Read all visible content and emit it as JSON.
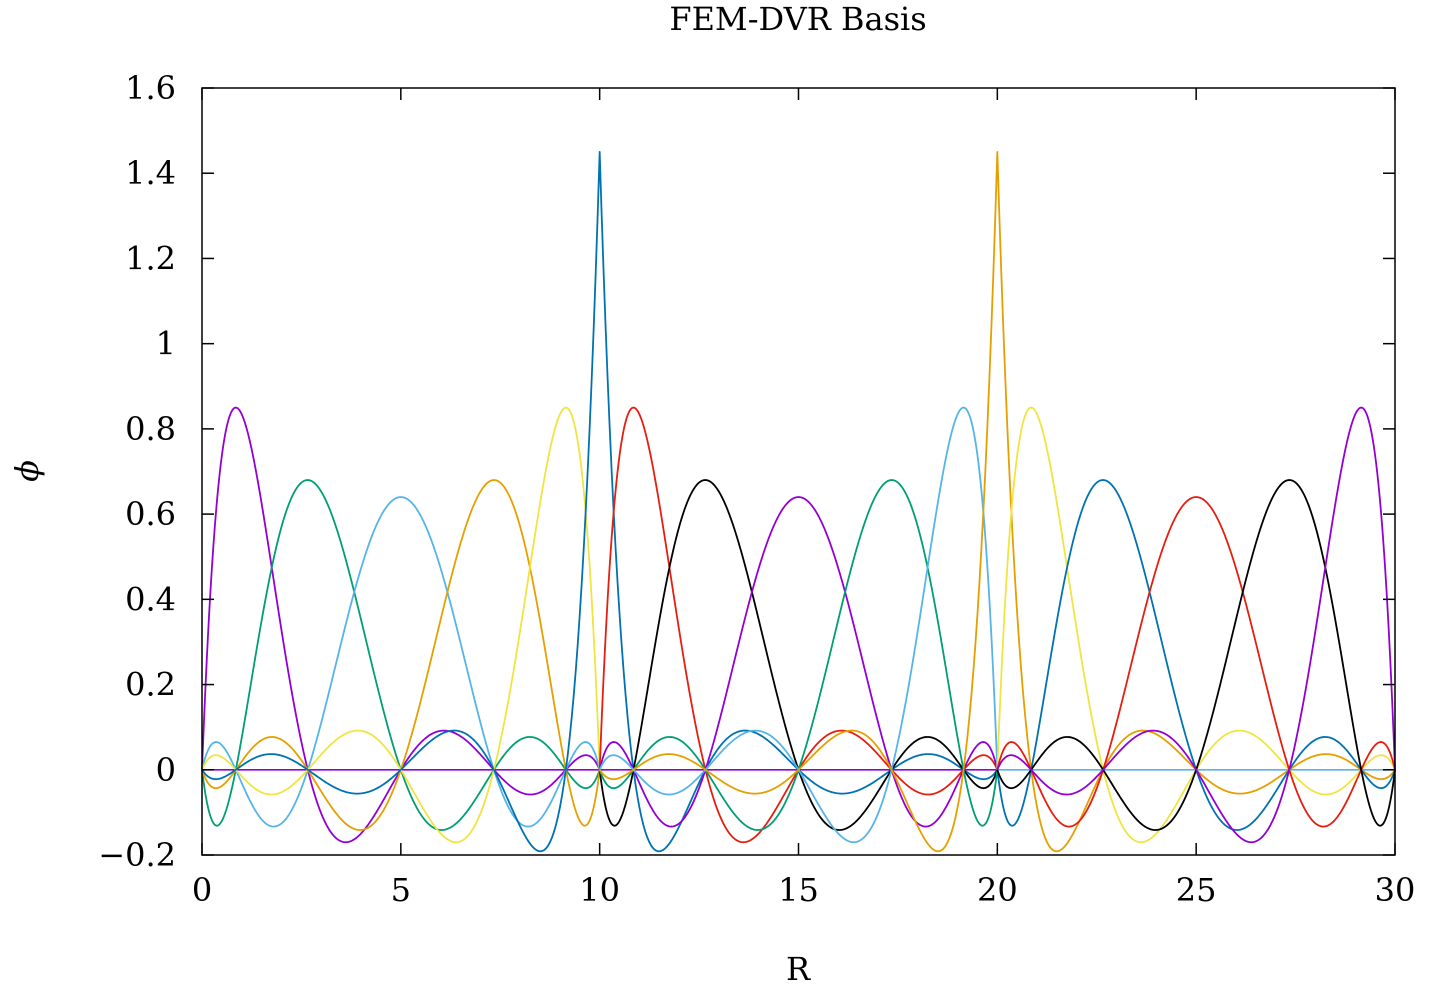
{
  "chart_data": {
    "type": "line",
    "title": "FEM-DVR Basis",
    "xlabel": "R",
    "ylabel": "ϕ",
    "xlim": [
      0,
      30
    ],
    "ylim": [
      -0.2,
      1.6
    ],
    "x_ticks": [
      {
        "value": 0,
        "label": "0"
      },
      {
        "value": 5,
        "label": "5"
      },
      {
        "value": 10,
        "label": "10"
      },
      {
        "value": 15,
        "label": "15"
      },
      {
        "value": 20,
        "label": "20"
      },
      {
        "value": 25,
        "label": "25"
      },
      {
        "value": 30,
        "label": "30"
      }
    ],
    "y_ticks": [
      {
        "value": -0.2,
        "label": "−0.2"
      },
      {
        "value": 0,
        "label": "0"
      },
      {
        "value": 0.2,
        "label": "0.2"
      },
      {
        "value": 0.4,
        "label": "0.4"
      },
      {
        "value": 0.6,
        "label": "0.6"
      },
      {
        "value": 0.8,
        "label": "0.8"
      },
      {
        "value": 1,
        "label": "1"
      },
      {
        "value": 1.2,
        "label": "1.2"
      },
      {
        "value": 1.4,
        "label": "1.4"
      },
      {
        "value": 1.6,
        "label": "1.6"
      }
    ],
    "grid": false,
    "legend": "none",
    "elements": [
      [
        0,
        10
      ],
      [
        10,
        20
      ],
      [
        20,
        30
      ]
    ],
    "element_nodes": [
      0.0,
      0.85,
      2.66,
      5.0,
      7.34,
      9.15,
      10.0
    ],
    "series": [
      {
        "element": 0,
        "node": 1,
        "peak_x": 0.85,
        "peak_y": 0.85,
        "color": "#9400d3"
      },
      {
        "element": 0,
        "node": 2,
        "peak_x": 2.66,
        "peak_y": 0.68,
        "color": "#009e73"
      },
      {
        "element": 0,
        "node": 3,
        "peak_x": 5.0,
        "peak_y": 0.64,
        "color": "#56b4e9"
      },
      {
        "element": 0,
        "node": 4,
        "peak_x": 7.34,
        "peak_y": 0.68,
        "color": "#e69f00"
      },
      {
        "element": 0,
        "node": 5,
        "peak_x": 9.15,
        "peak_y": 0.85,
        "color": "#f0e442"
      },
      {
        "element": "bridge",
        "node": 10,
        "peak_x": 10.0,
        "peak_y": 1.45,
        "color": "#0072b2"
      },
      {
        "element": 1,
        "node": 1,
        "peak_x": 10.85,
        "peak_y": 0.85,
        "color": "#e51e10"
      },
      {
        "element": 1,
        "node": 2,
        "peak_x": 12.66,
        "peak_y": 0.68,
        "color": "#000000"
      },
      {
        "element": 1,
        "node": 3,
        "peak_x": 15.0,
        "peak_y": 0.64,
        "color": "#9400d3"
      },
      {
        "element": 1,
        "node": 4,
        "peak_x": 17.34,
        "peak_y": 0.68,
        "color": "#009e73"
      },
      {
        "element": 1,
        "node": 5,
        "peak_x": 19.15,
        "peak_y": 0.85,
        "color": "#56b4e9"
      },
      {
        "element": "bridge",
        "node": 20,
        "peak_x": 20.0,
        "peak_y": 1.45,
        "color": "#e69f00"
      },
      {
        "element": 2,
        "node": 1,
        "peak_x": 20.85,
        "peak_y": 0.85,
        "color": "#f0e442"
      },
      {
        "element": 2,
        "node": 2,
        "peak_x": 22.66,
        "peak_y": 0.68,
        "color": "#0072b2"
      },
      {
        "element": 2,
        "node": 3,
        "peak_x": 25.0,
        "peak_y": 0.64,
        "color": "#e51e10"
      },
      {
        "element": 2,
        "node": 4,
        "peak_x": 27.34,
        "peak_y": 0.68,
        "color": "#000000"
      },
      {
        "element": 2,
        "node": 5,
        "peak_x": 29.15,
        "peak_y": 0.85,
        "color": "#9400d3"
      }
    ],
    "zero_lines": [
      {
        "x_range": [
          0,
          20
        ],
        "color": "#9400d3"
      },
      {
        "x_range": [
          20,
          30
        ],
        "color": "#56b4e9"
      }
    ]
  }
}
